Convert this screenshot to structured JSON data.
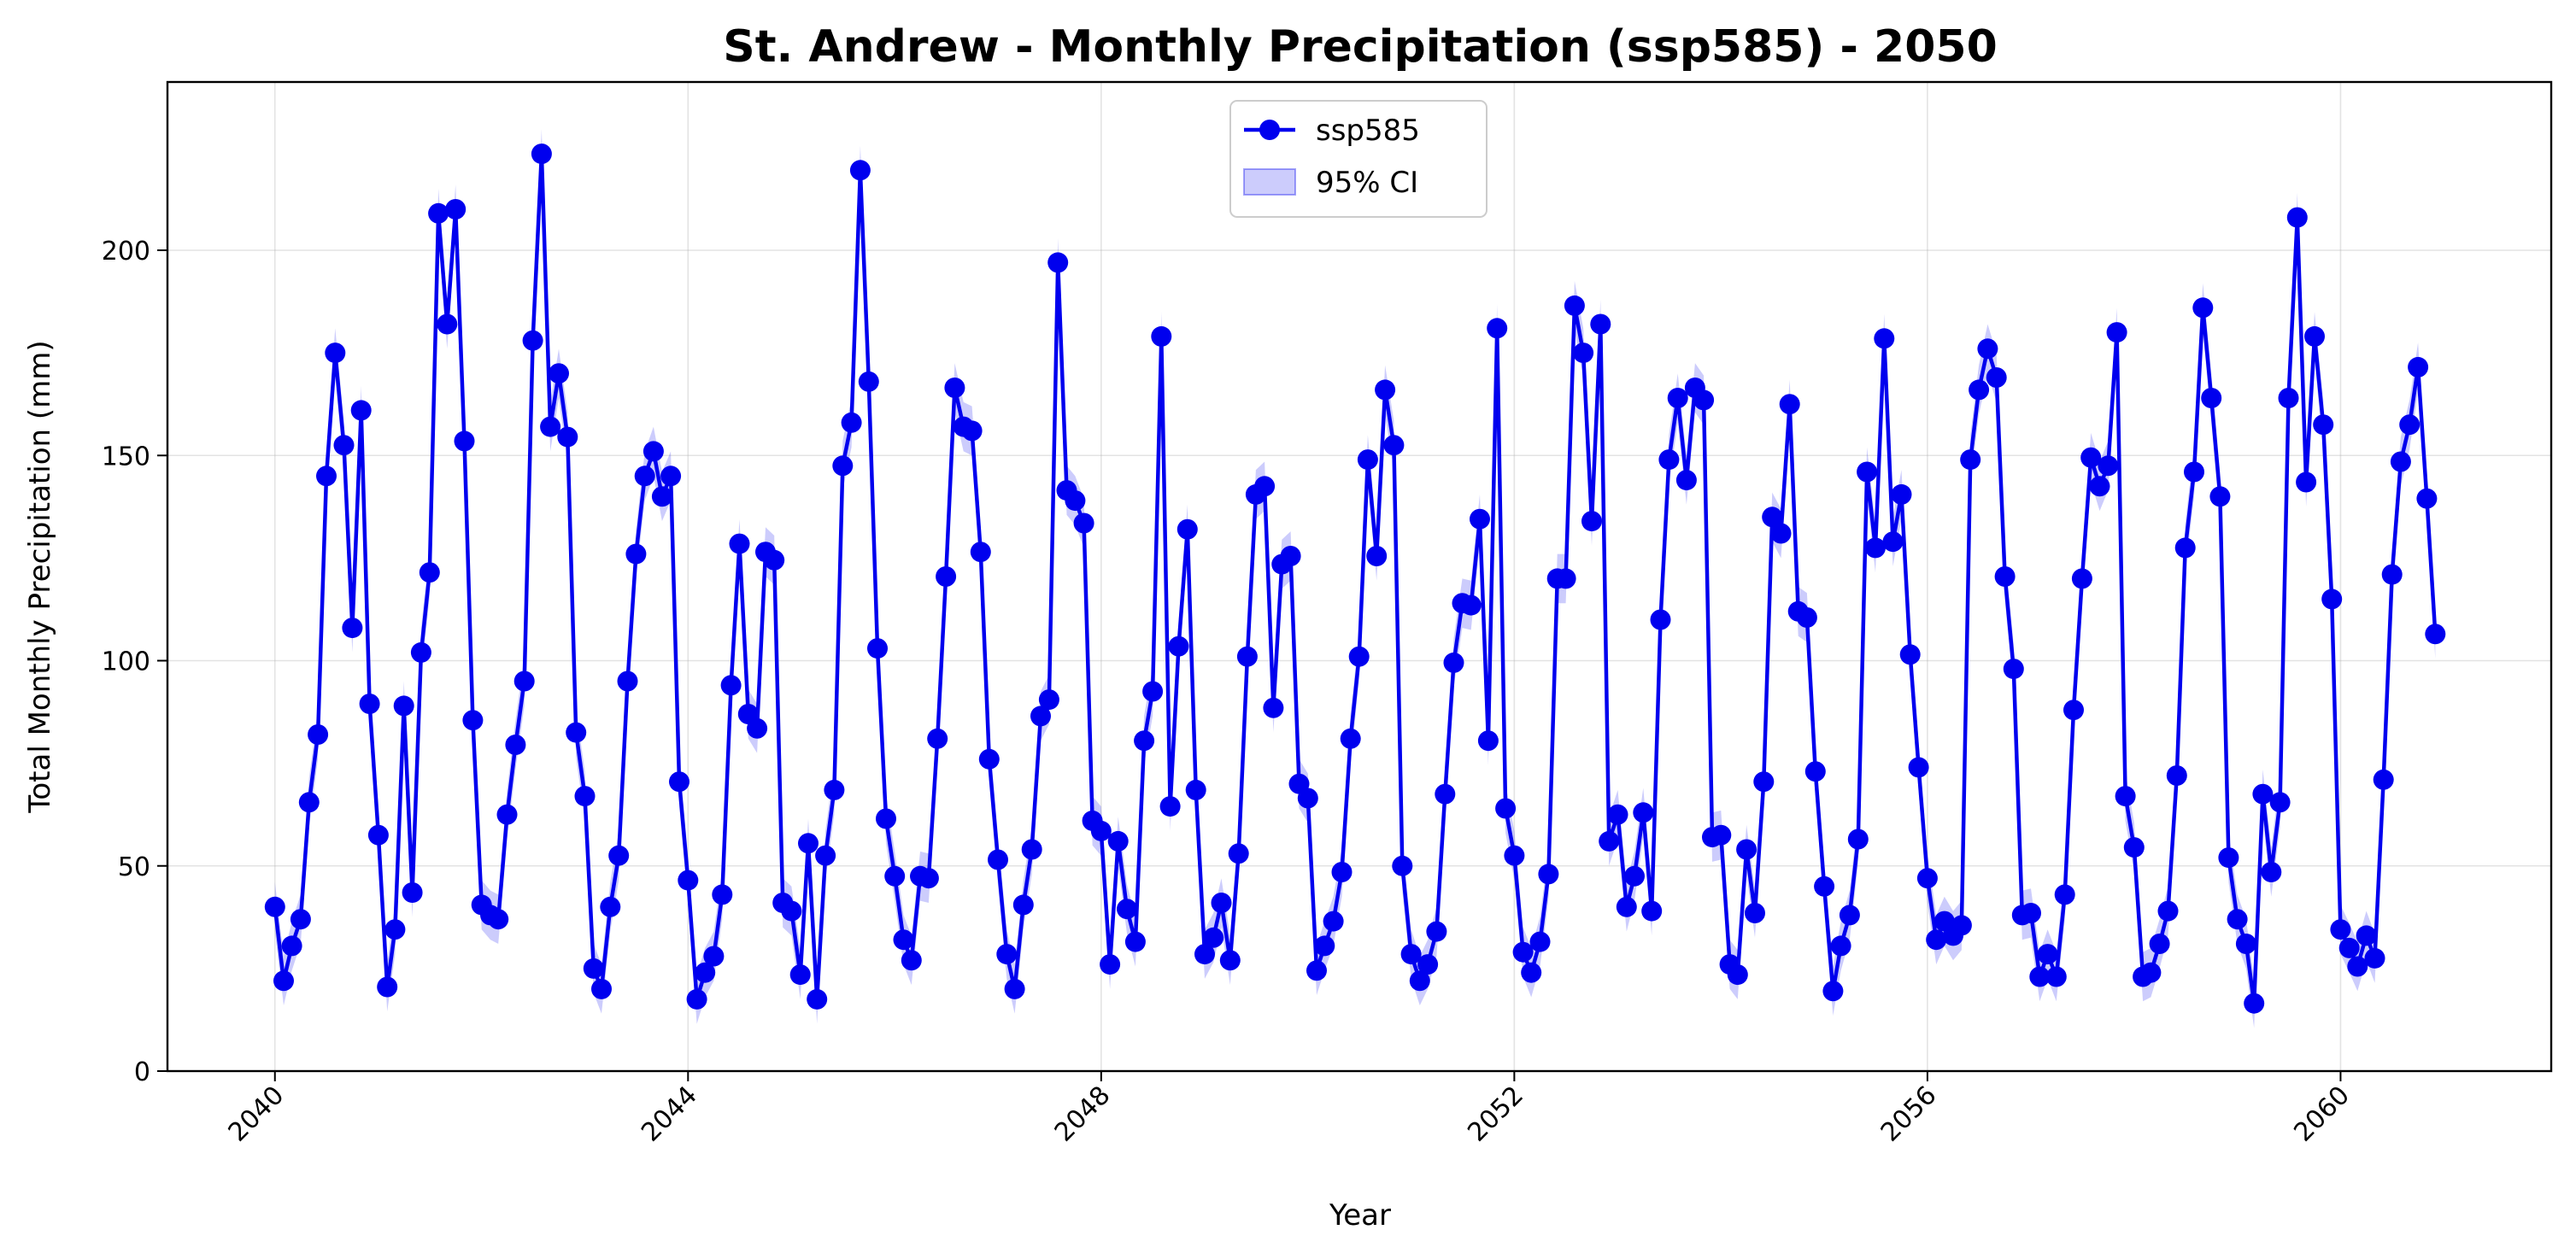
{
  "chart_data": {
    "type": "line",
    "title": "St. Andrew - Monthly Precipitation (ssp585) - 2050",
    "xlabel": "Year",
    "ylabel": "Total Monthly Precipitation (mm)",
    "xlim": [
      "2038-12-17",
      "2062-01-15"
    ],
    "ylim": [
      0,
      241
    ],
    "x_ticks": [
      "2040",
      "2044",
      "2048",
      "2052",
      "2056",
      "2060"
    ],
    "y_ticks": [
      "0",
      "50",
      "100",
      "150",
      "200"
    ],
    "grid": true,
    "legend": {
      "position": "top-center",
      "entries": [
        {
          "label": "ssp585",
          "marker": "line-with-circle"
        },
        {
          "label": "95% CI",
          "marker": "filled-band"
        }
      ]
    },
    "colors": {
      "line": "#0000ee",
      "band": "#0000ee"
    },
    "ci_half_width": 6,
    "series": [
      {
        "name": "ssp585",
        "start": "2040-01",
        "frequency": "monthly",
        "values": [
          40,
          22,
          30.5,
          37,
          65.5,
          82,
          145,
          175,
          152.5,
          108,
          161,
          89.5,
          57.5,
          20.5,
          34.5,
          89,
          43.5,
          102,
          121.5,
          209,
          182,
          210,
          153.5,
          85.5,
          40.5,
          38,
          37,
          62.5,
          79.5,
          95,
          178,
          223.5,
          157,
          170,
          154.5,
          82.5,
          67,
          25,
          20,
          40,
          52.5,
          95,
          126,
          145,
          151,
          140,
          145,
          70.5,
          46.5,
          17.5,
          24,
          28,
          43,
          94,
          128.5,
          87,
          83.5,
          126.5,
          124.5,
          41,
          39,
          23.5,
          55.5,
          17.5,
          52.5,
          68.5,
          147.5,
          158,
          219.5,
          168,
          103,
          61.5,
          47.5,
          32,
          27,
          47.5,
          47,
          81,
          120.5,
          166.5,
          157,
          156,
          126.5,
          76,
          51.5,
          28.5,
          20,
          40.5,
          54,
          86.5,
          90.5,
          197,
          141.5,
          139,
          133.5,
          61,
          58.5,
          26,
          56,
          39.5,
          31.5,
          80.5,
          92.5,
          179,
          64.5,
          103.5,
          132,
          68.5,
          28.5,
          32.5,
          41,
          27,
          53,
          101,
          140.5,
          142.5,
          88.5,
          123.5,
          125.5,
          70,
          66.5,
          24.5,
          30.5,
          36.5,
          48.5,
          81,
          101,
          149,
          125.5,
          166,
          152.5,
          50,
          28.5,
          22,
          26,
          34,
          67.5,
          99.5,
          114,
          113.5,
          134.5,
          80.5,
          181,
          64,
          52.5,
          29,
          24,
          31.5,
          48,
          120,
          120,
          186.5,
          175,
          134,
          182,
          56,
          62.5,
          40,
          47.5,
          63,
          39,
          110,
          149,
          164,
          144,
          166.5,
          163.5,
          57,
          57.5,
          26,
          23.5,
          54,
          38.5,
          70.5,
          135,
          131,
          162.5,
          112,
          110.5,
          73,
          45,
          19.5,
          30.5,
          38,
          56.5,
          146,
          127.5,
          178.5,
          129,
          140.5,
          101.5,
          74,
          47,
          32,
          36.5,
          33,
          35.5,
          149,
          166,
          176,
          169,
          120.5,
          98,
          38,
          38.5,
          23,
          28.5,
          23,
          43,
          88,
          120,
          149.5,
          142.5,
          147.5,
          180,
          67,
          54.5,
          23,
          24,
          31,
          39,
          72,
          127.5,
          146,
          186,
          164,
          140,
          52,
          37,
          31,
          16.5,
          67.5,
          48.5,
          65.5,
          164,
          208,
          143.5,
          179,
          157.5,
          115,
          34.5,
          30,
          25.5,
          33,
          27.5,
          71,
          121,
          148.5,
          157.5,
          171.5,
          139.5,
          106.5
        ]
      }
    ]
  }
}
